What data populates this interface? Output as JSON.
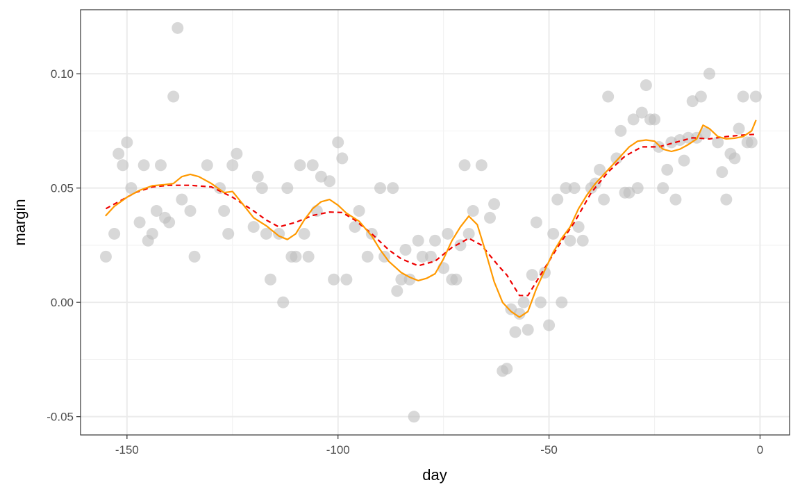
{
  "chart_data": {
    "type": "scatter",
    "title": "",
    "xlabel": "day",
    "ylabel": "margin",
    "xlim": [
      -161,
      7
    ],
    "ylim": [
      -0.058,
      0.128
    ],
    "grid": true,
    "legend": "none",
    "x_ticks": [
      -150,
      -100,
      -50,
      0
    ],
    "x_tick_labels": [
      "-150",
      "-100",
      "-50",
      "0"
    ],
    "y_ticks": [
      -0.05,
      0.0,
      0.05,
      0.1
    ],
    "y_tick_labels": [
      "-0.05",
      "0.00",
      "0.05",
      "0.10"
    ],
    "x_minor_ticks": [
      -125,
      -75,
      -25
    ],
    "y_minor_ticks": [
      -0.025,
      0.025,
      0.075
    ],
    "colors": {
      "points": "#bebebe",
      "smooth_dashed": "#ee0000",
      "smooth_solid": "#ff9900",
      "grid_major": "#ebebeb",
      "grid_minor": "#f2f2f2",
      "panel_border": "#333333"
    },
    "points": [
      [
        -155,
        0.02
      ],
      [
        -153,
        0.03
      ],
      [
        -152,
        0.065
      ],
      [
        -151,
        0.06
      ],
      [
        -150,
        0.07
      ],
      [
        -149,
        0.05
      ],
      [
        -147,
        0.035
      ],
      [
        -146,
        0.06
      ],
      [
        -145,
        0.027
      ],
      [
        -144,
        0.03
      ],
      [
        -143,
        0.04
      ],
      [
        -142,
        0.06
      ],
      [
        -141,
        0.037
      ],
      [
        -140,
        0.035
      ],
      [
        -139,
        0.09
      ],
      [
        -138,
        0.12
      ],
      [
        -137,
        0.045
      ],
      [
        -135,
        0.04
      ],
      [
        -134,
        0.02
      ],
      [
        -131,
        0.06
      ],
      [
        -128,
        0.05
      ],
      [
        -127,
        0.04
      ],
      [
        -126,
        0.03
      ],
      [
        -125,
        0.06
      ],
      [
        -124,
        0.065
      ],
      [
        -120,
        0.033
      ],
      [
        -119,
        0.055
      ],
      [
        -118,
        0.05
      ],
      [
        -117,
        0.03
      ],
      [
        -116,
        0.01
      ],
      [
        -114,
        0.03
      ],
      [
        -113,
        0.0
      ],
      [
        -112,
        0.05
      ],
      [
        -111,
        0.02
      ],
      [
        -110,
        0.02
      ],
      [
        -109,
        0.06
      ],
      [
        -108,
        0.03
      ],
      [
        -107,
        0.02
      ],
      [
        -106,
        0.06
      ],
      [
        -105,
        0.04
      ],
      [
        -104,
        0.055
      ],
      [
        -102,
        0.053
      ],
      [
        -101,
        0.01
      ],
      [
        -100,
        0.07
      ],
      [
        -99,
        0.063
      ],
      [
        -98,
        0.01
      ],
      [
        -96,
        0.033
      ],
      [
        -95,
        0.04
      ],
      [
        -93,
        0.02
      ],
      [
        -92,
        0.03
      ],
      [
        -90,
        0.05
      ],
      [
        -89,
        0.02
      ],
      [
        -87,
        0.05
      ],
      [
        -86,
        0.005
      ],
      [
        -85,
        0.01
      ],
      [
        -84,
        0.023
      ],
      [
        -83,
        0.01
      ],
      [
        -82,
        -0.05
      ],
      [
        -81,
        0.027
      ],
      [
        -80,
        0.02
      ],
      [
        -78,
        0.02
      ],
      [
        -77,
        0.027
      ],
      [
        -75,
        0.015
      ],
      [
        -74,
        0.03
      ],
      [
        -73,
        0.01
      ],
      [
        -72,
        0.01
      ],
      [
        -71,
        0.025
      ],
      [
        -70,
        0.06
      ],
      [
        -69,
        0.03
      ],
      [
        -68,
        0.04
      ],
      [
        -66,
        0.06
      ],
      [
        -64,
        0.037
      ],
      [
        -63,
        0.043
      ],
      [
        -61,
        -0.03
      ],
      [
        -60,
        -0.029
      ],
      [
        -59,
        -0.003
      ],
      [
        -58,
        -0.013
      ],
      [
        -57,
        -0.005
      ],
      [
        -56,
        0.0
      ],
      [
        -55,
        -0.012
      ],
      [
        -54,
        0.012
      ],
      [
        -53,
        0.035
      ],
      [
        -52,
        0.0
      ],
      [
        -51,
        0.013
      ],
      [
        -50,
        -0.01
      ],
      [
        -49,
        0.03
      ],
      [
        -48,
        0.045
      ],
      [
        -47,
        0.0
      ],
      [
        -46,
        0.05
      ],
      [
        -45,
        0.027
      ],
      [
        -44,
        0.05
      ],
      [
        -43,
        0.033
      ],
      [
        -42,
        0.027
      ],
      [
        -40,
        0.05
      ],
      [
        -39,
        0.052
      ],
      [
        -38,
        0.058
      ],
      [
        -37,
        0.045
      ],
      [
        -36,
        0.09
      ],
      [
        -34,
        0.063
      ],
      [
        -33,
        0.075
      ],
      [
        -32,
        0.048
      ],
      [
        -31,
        0.048
      ],
      [
        -30,
        0.08
      ],
      [
        -29,
        0.05
      ],
      [
        -28,
        0.083
      ],
      [
        -27,
        0.095
      ],
      [
        -26,
        0.08
      ],
      [
        -25,
        0.08
      ],
      [
        -24,
        0.068
      ],
      [
        -23,
        0.05
      ],
      [
        -22,
        0.058
      ],
      [
        -21,
        0.07
      ],
      [
        -20,
        0.045
      ],
      [
        -19,
        0.071
      ],
      [
        -18,
        0.062
      ],
      [
        -17,
        0.072
      ],
      [
        -16,
        0.088
      ],
      [
        -15,
        0.072
      ],
      [
        -14,
        0.09
      ],
      [
        -13,
        0.074
      ],
      [
        -12,
        0.1
      ],
      [
        -10,
        0.07
      ],
      [
        -9,
        0.057
      ],
      [
        -8,
        0.045
      ],
      [
        -7,
        0.065
      ],
      [
        -6,
        0.063
      ],
      [
        -5,
        0.076
      ],
      [
        -4,
        0.09
      ],
      [
        -3,
        0.07
      ],
      [
        -2,
        0.07
      ],
      [
        -1,
        0.09
      ]
    ],
    "series": [
      {
        "style": "dashed",
        "color": "#ee0000",
        "values": [
          [
            -155,
            0.041
          ],
          [
            -152,
            0.044
          ],
          [
            -148,
            0.048
          ],
          [
            -144,
            0.0505
          ],
          [
            -140,
            0.0512
          ],
          [
            -135,
            0.0512
          ],
          [
            -130,
            0.0505
          ],
          [
            -125,
            0.046
          ],
          [
            -120,
            0.04
          ],
          [
            -117,
            0.036
          ],
          [
            -114,
            0.033
          ],
          [
            -110,
            0.035
          ],
          [
            -106,
            0.038
          ],
          [
            -102,
            0.0395
          ],
          [
            -99,
            0.0393
          ],
          [
            -96,
            0.036
          ],
          [
            -92,
            0.03
          ],
          [
            -88,
            0.023
          ],
          [
            -85,
            0.019
          ],
          [
            -81,
            0.016
          ],
          [
            -77,
            0.018
          ],
          [
            -73,
            0.024
          ],
          [
            -69,
            0.028
          ],
          [
            -66,
            0.025
          ],
          [
            -62,
            0.016
          ],
          [
            -60,
            0.012
          ],
          [
            -57,
            0.003
          ],
          [
            -55,
            0.003
          ],
          [
            -52,
            0.012
          ],
          [
            -48,
            0.024
          ],
          [
            -44,
            0.035
          ],
          [
            -40,
            0.048
          ],
          [
            -36,
            0.057
          ],
          [
            -32,
            0.064
          ],
          [
            -28,
            0.068
          ],
          [
            -24,
            0.068
          ],
          [
            -20,
            0.07
          ],
          [
            -16,
            0.072
          ],
          [
            -12,
            0.0715
          ],
          [
            -8,
            0.0725
          ],
          [
            -4,
            0.0732
          ],
          [
            -1,
            0.0735
          ]
        ]
      },
      {
        "style": "solid",
        "color": "#ff9900",
        "values": [
          [
            -155,
            0.038
          ],
          [
            -153,
            0.042
          ],
          [
            -150,
            0.046
          ],
          [
            -147,
            0.049
          ],
          [
            -144,
            0.051
          ],
          [
            -141,
            0.0515
          ],
          [
            -139,
            0.052
          ],
          [
            -137,
            0.055
          ],
          [
            -135,
            0.056
          ],
          [
            -133,
            0.055
          ],
          [
            -130,
            0.052
          ],
          [
            -127,
            0.048
          ],
          [
            -125,
            0.0485
          ],
          [
            -123,
            0.044
          ],
          [
            -120,
            0.037
          ],
          [
            -117,
            0.0335
          ],
          [
            -114,
            0.029
          ],
          [
            -112,
            0.0275
          ],
          [
            -110,
            0.03
          ],
          [
            -108,
            0.036
          ],
          [
            -106,
            0.041
          ],
          [
            -104,
            0.044
          ],
          [
            -102,
            0.045
          ],
          [
            -100,
            0.0425
          ],
          [
            -98,
            0.039
          ],
          [
            -95,
            0.0355
          ],
          [
            -92,
            0.029
          ],
          [
            -90,
            0.023
          ],
          [
            -88,
            0.018
          ],
          [
            -85,
            0.013
          ],
          [
            -83,
            0.011
          ],
          [
            -81,
            0.0095
          ],
          [
            -79,
            0.0105
          ],
          [
            -77,
            0.0125
          ],
          [
            -75,
            0.019
          ],
          [
            -73,
            0.027
          ],
          [
            -71,
            0.033
          ],
          [
            -69,
            0.0377
          ],
          [
            -67,
            0.034
          ],
          [
            -65,
            0.022
          ],
          [
            -63,
            0.009
          ],
          [
            -61,
            0.0
          ],
          [
            -59,
            -0.004
          ],
          [
            -57,
            -0.0065
          ],
          [
            -55,
            -0.004
          ],
          [
            -53,
            0.006
          ],
          [
            -51,
            0.014
          ],
          [
            -49,
            0.022
          ],
          [
            -47,
            0.028
          ],
          [
            -45,
            0.033
          ],
          [
            -43,
            0.041
          ],
          [
            -41,
            0.047
          ],
          [
            -39,
            0.052
          ],
          [
            -37,
            0.056
          ],
          [
            -35,
            0.06
          ],
          [
            -33,
            0.064
          ],
          [
            -31,
            0.068
          ],
          [
            -29,
            0.0705
          ],
          [
            -27,
            0.071
          ],
          [
            -25,
            0.0705
          ],
          [
            -23,
            0.067
          ],
          [
            -21,
            0.066
          ],
          [
            -19,
            0.067
          ],
          [
            -17,
            0.069
          ],
          [
            -15,
            0.0715
          ],
          [
            -13.5,
            0.0775
          ],
          [
            -12,
            0.076
          ],
          [
            -10,
            0.0725
          ],
          [
            -8,
            0.0715
          ],
          [
            -6,
            0.0718
          ],
          [
            -4,
            0.0725
          ],
          [
            -2,
            0.075
          ],
          [
            -1,
            0.0795
          ]
        ]
      }
    ]
  }
}
